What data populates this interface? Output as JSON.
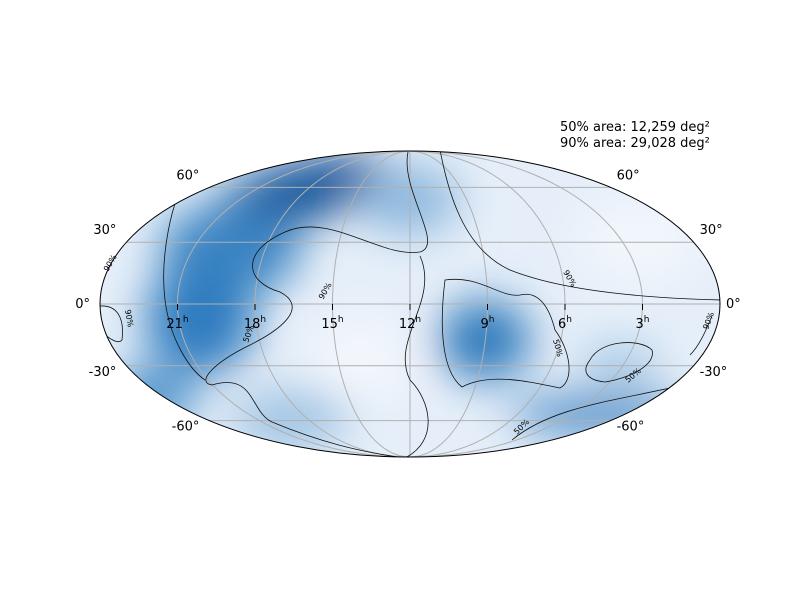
{
  "annotations": [
    "50% area: 12,259 deg²",
    "90% area: 29,028 deg²"
  ],
  "lat_ticks": [
    {
      "value": 60,
      "label": "60°"
    },
    {
      "value": 30,
      "label": "30°"
    },
    {
      "value": 0,
      "label": "0°"
    },
    {
      "value": -30,
      "label": "-30°"
    },
    {
      "value": -60,
      "label": "-60°"
    }
  ],
  "ra_ticks": [
    {
      "value": 21,
      "label": "21",
      "unit": "h"
    },
    {
      "value": 18,
      "label": "18",
      "unit": "h"
    },
    {
      "value": 15,
      "label": "15",
      "unit": "h"
    },
    {
      "value": 12,
      "label": "12",
      "unit": "h"
    },
    {
      "value": 9,
      "label": "9",
      "unit": "h"
    },
    {
      "value": 6,
      "label": "6",
      "unit": "h"
    },
    {
      "value": 3,
      "label": "3",
      "unit": "h"
    }
  ],
  "contour_labels": [
    "90%",
    "90%",
    "90%",
    "90%",
    "90%",
    "50%",
    "50%",
    "50%",
    "50%"
  ]
}
